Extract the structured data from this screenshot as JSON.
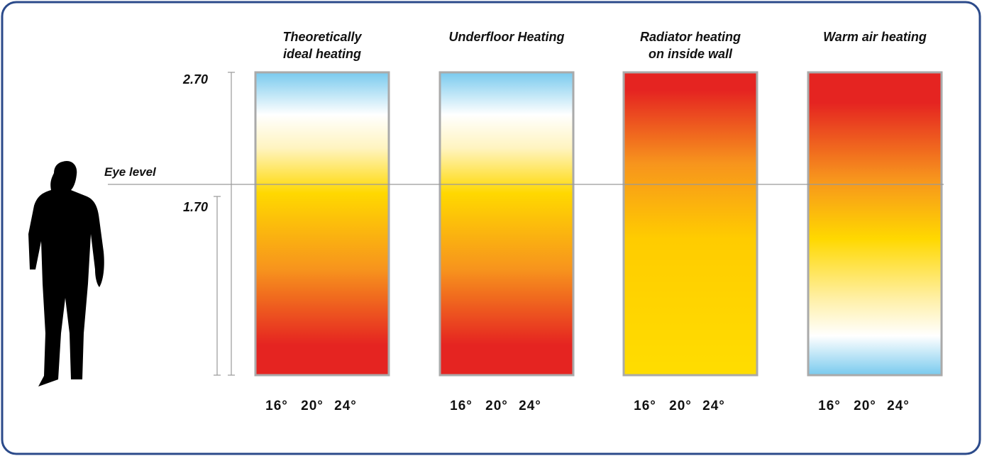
{
  "axis": {
    "top_label": "2.70",
    "eye_label": "1.70"
  },
  "eye_level": "Eye level",
  "panels": [
    {
      "title_lines": [
        "Theoretically",
        "ideal heating"
      ],
      "scale": [
        "16°",
        "20°",
        "24°"
      ]
    },
    {
      "title_lines": [
        "Underfloor Heating"
      ],
      "scale": [
        "16°",
        "20°",
        "24°"
      ]
    },
    {
      "title_lines": [
        "Radiator heating",
        "on inside wall"
      ],
      "scale": [
        "16°",
        "20°",
        "24°"
      ]
    },
    {
      "title_lines": [
        "Warm air heating"
      ],
      "scale": [
        "16°",
        "20°",
        "24°"
      ]
    }
  ]
}
